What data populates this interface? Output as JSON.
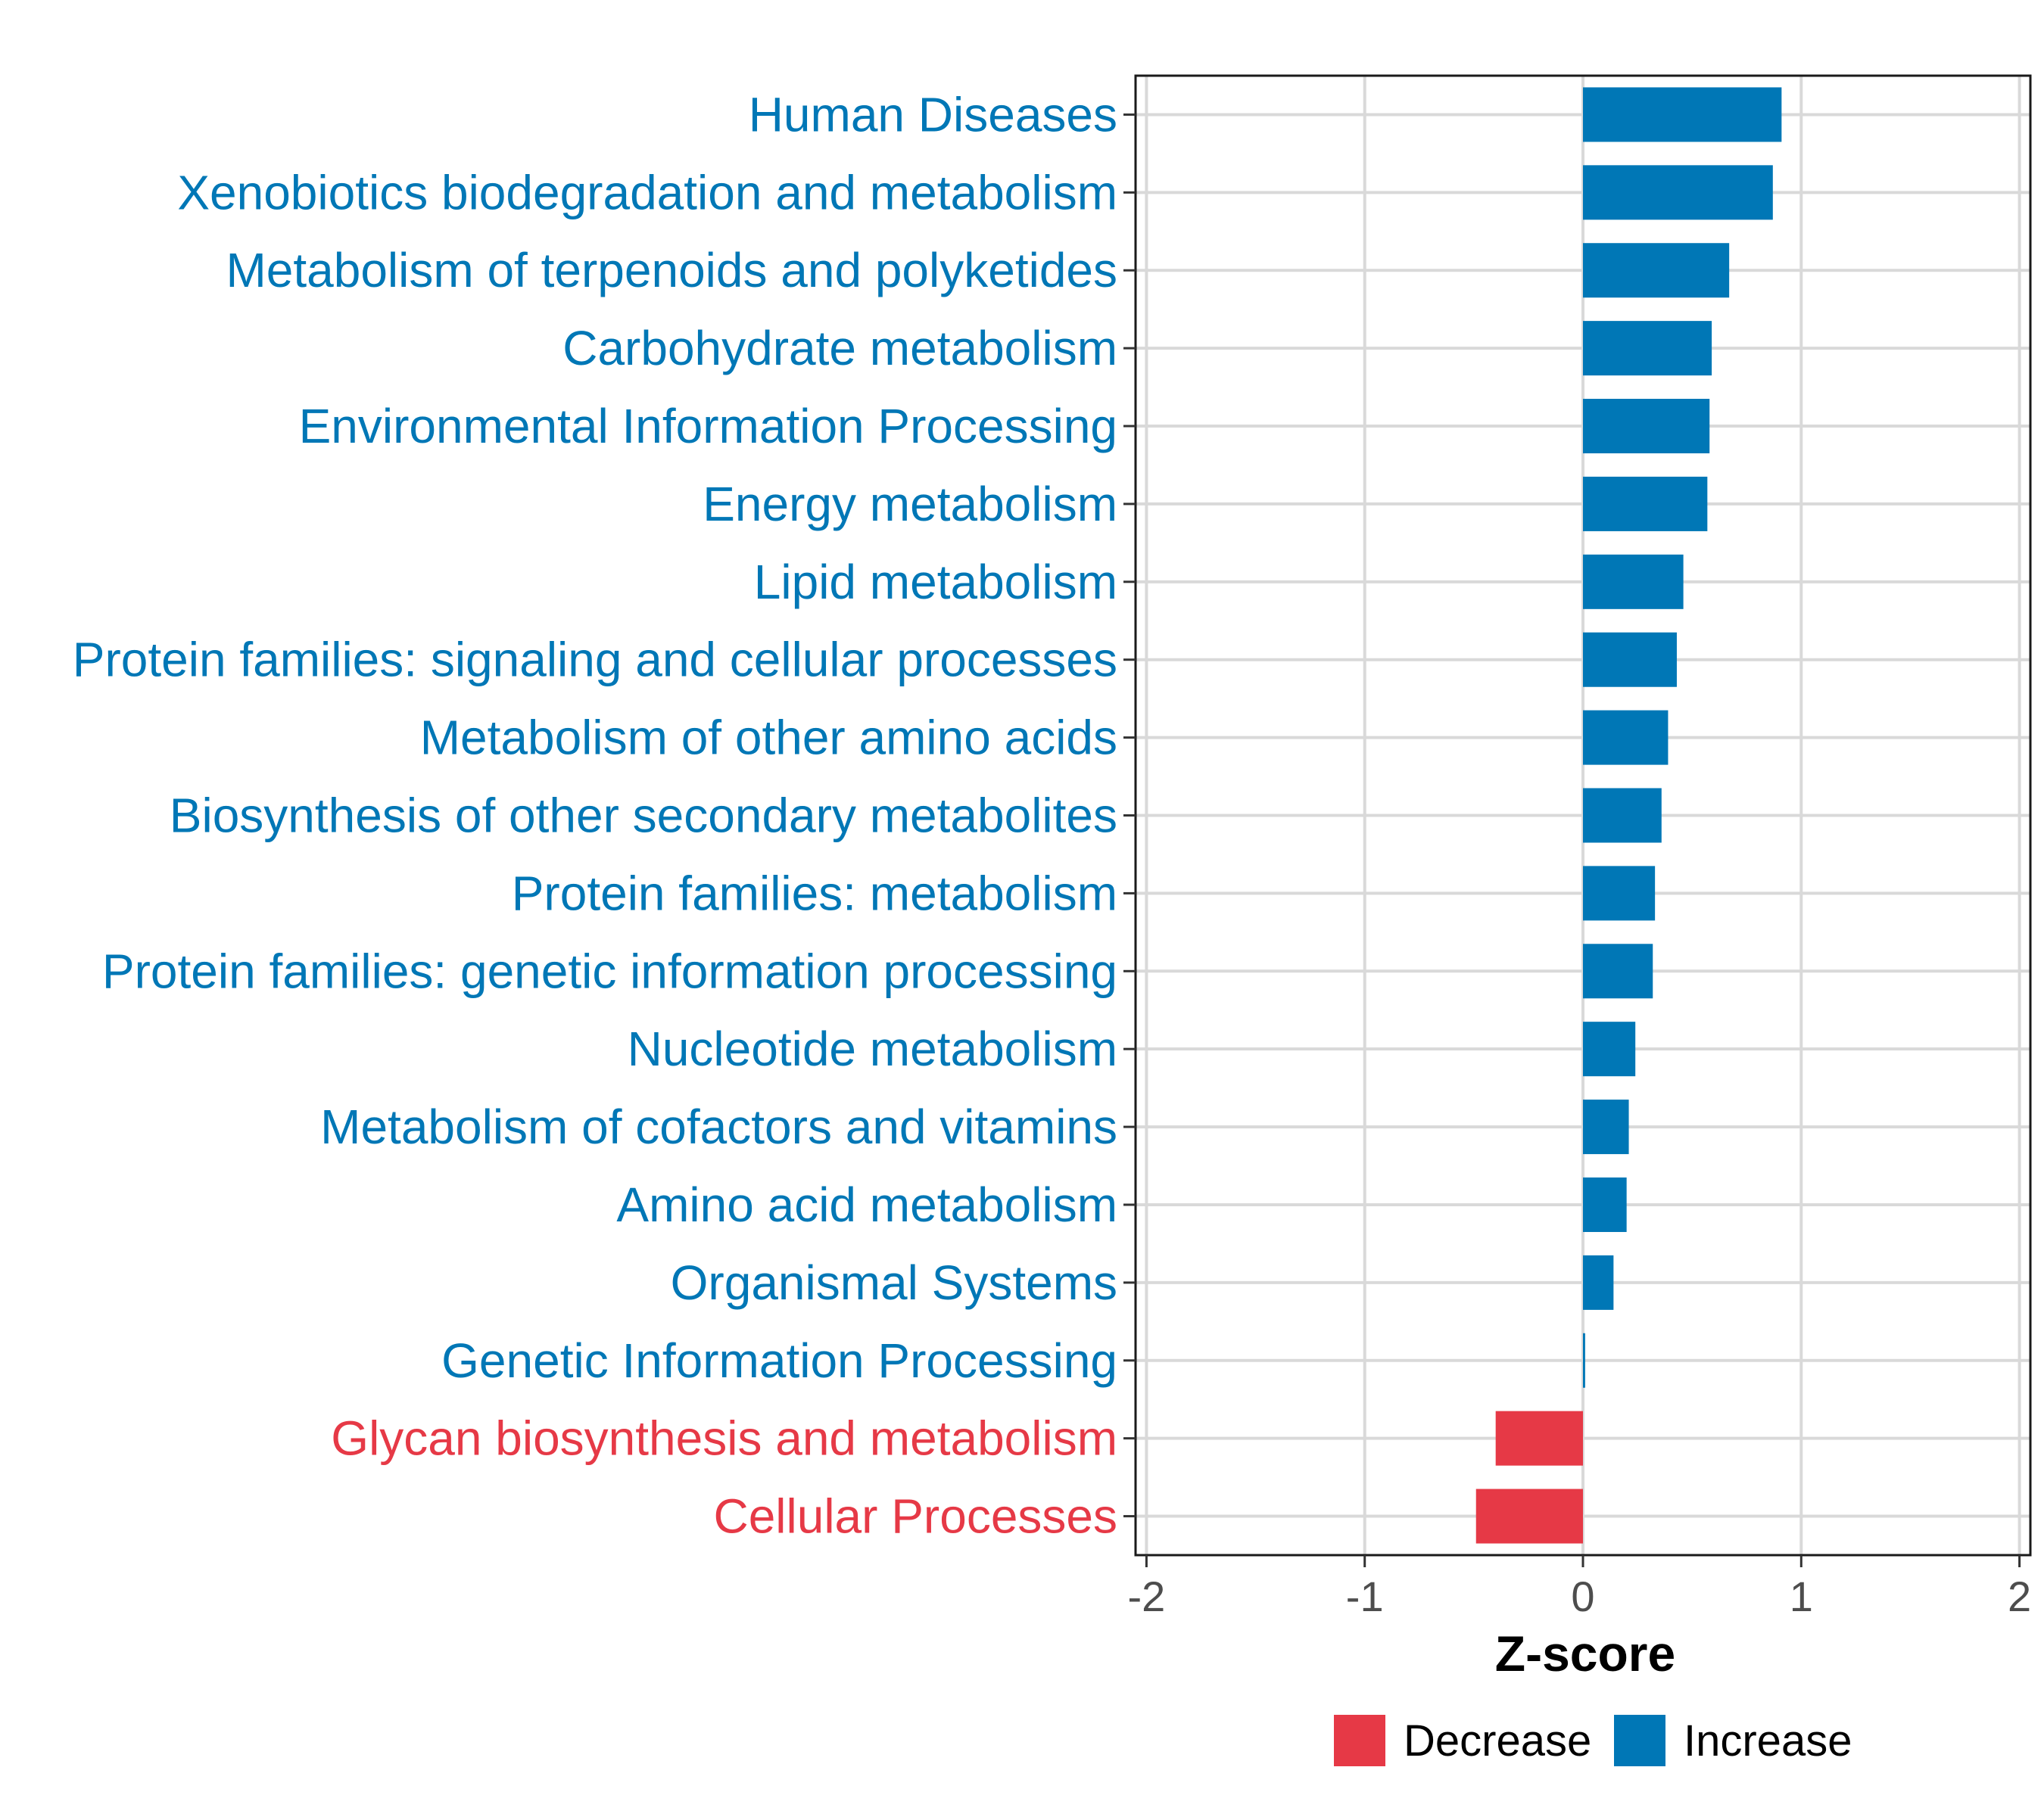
{
  "chart_data": {
    "type": "bar",
    "orientation": "horizontal",
    "title": "",
    "xlabel": "Z-score",
    "ylabel": "",
    "xlim": [
      -2.05,
      2.05
    ],
    "xticks": [
      -2,
      -1,
      0,
      1,
      2
    ],
    "xtick_labels": [
      "-2",
      "-1",
      "0",
      "1",
      "2"
    ],
    "grid": true,
    "legend_position": "bottom",
    "colors": {
      "Decrease": "#E63946",
      "Increase": "#0077B6"
    },
    "legend": [
      {
        "label": "Decrease",
        "color": "#E63946"
      },
      {
        "label": "Increase",
        "color": "#0077B6"
      }
    ],
    "categories": [
      "Human Diseases",
      "Xenobiotics biodegradation and metabolism",
      "Metabolism of terpenoids and polyketides",
      "Carbohydrate metabolism",
      "Environmental Information Processing",
      "Energy metabolism",
      "Lipid metabolism",
      "Protein families: signaling and cellular processes",
      "Metabolism of other amino acids",
      "Biosynthesis of other secondary metabolites",
      "Protein families: metabolism",
      "Protein families: genetic information processing",
      "Nucleotide metabolism",
      "Metabolism of cofactors and vitamins",
      "Amino acid metabolism",
      "Organismal Systems",
      "Genetic Information Processing",
      "Glycan biosynthesis and metabolism",
      "Cellular Processes"
    ],
    "values": [
      0.91,
      0.87,
      0.67,
      0.59,
      0.58,
      0.57,
      0.46,
      0.43,
      0.39,
      0.36,
      0.33,
      0.32,
      0.24,
      0.21,
      0.2,
      0.14,
      0.01,
      -0.4,
      -0.49
    ],
    "groups": [
      "Increase",
      "Increase",
      "Increase",
      "Increase",
      "Increase",
      "Increase",
      "Increase",
      "Increase",
      "Increase",
      "Increase",
      "Increase",
      "Increase",
      "Increase",
      "Increase",
      "Increase",
      "Increase",
      "Increase",
      "Decrease",
      "Decrease"
    ]
  }
}
